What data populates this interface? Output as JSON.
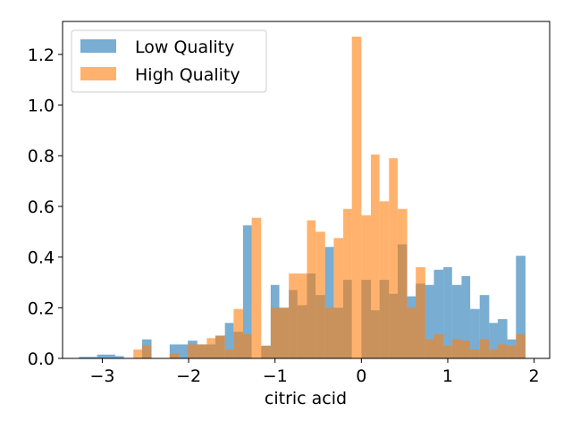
{
  "chart_data": {
    "type": "bar",
    "xlabel": "citric acid",
    "ylabel": "",
    "xlim": [
      -3.46,
      2.18
    ],
    "ylim": [
      0,
      1.33
    ],
    "xticks": [
      -3,
      -2,
      -1,
      0,
      1,
      2
    ],
    "xtick_labels": [
      "−3",
      "−2",
      "−1",
      "0",
      "1",
      "2"
    ],
    "yticks": [
      0,
      0.2,
      0.4,
      0.6,
      0.8,
      1.0,
      1.2
    ],
    "ytick_labels": [
      "0.0",
      "0.2",
      "0.4",
      "0.6",
      "0.8",
      "1.0",
      "1.2"
    ],
    "legend_position": "top-left",
    "series": [
      {
        "name": "Low Quality",
        "color": "#1f77b4",
        "opacity": 0.6,
        "bins": [
          [
            -3.27,
            -3.06,
            0.006
          ],
          [
            -3.06,
            -2.85,
            0.015
          ],
          [
            -2.85,
            -2.75,
            0.009
          ],
          [
            -2.54,
            -2.43,
            0.075
          ],
          [
            -2.22,
            -2.01,
            0.055
          ],
          [
            -2.01,
            -1.9,
            0.07
          ],
          [
            -1.9,
            -1.69,
            0.055
          ],
          [
            -1.69,
            -1.58,
            0.09
          ],
          [
            -1.58,
            -1.48,
            0.14
          ],
          [
            -1.48,
            -1.37,
            0.105
          ],
          [
            -1.37,
            -1.27,
            0.525
          ],
          [
            -1.16,
            -1.05,
            0.05
          ],
          [
            -1.05,
            -0.95,
            0.29
          ],
          [
            -0.95,
            -0.84,
            0.2
          ],
          [
            -0.84,
            -0.74,
            0.27
          ],
          [
            -0.74,
            -0.63,
            0.21
          ],
          [
            -0.63,
            -0.53,
            0.335
          ],
          [
            -0.53,
            -0.42,
            0.25
          ],
          [
            -0.42,
            -0.32,
            0.44
          ],
          [
            -0.32,
            -0.21,
            0.2
          ],
          [
            -0.21,
            -0.11,
            0.31
          ],
          [
            -0.11,
            0.0,
            0.0
          ],
          [
            0.0,
            0.11,
            0.31
          ],
          [
            0.11,
            0.21,
            0.19
          ],
          [
            0.21,
            0.32,
            0.31
          ],
          [
            0.32,
            0.42,
            0.255
          ],
          [
            0.42,
            0.53,
            0.45
          ],
          [
            0.53,
            0.63,
            0.245
          ],
          [
            0.63,
            0.74,
            0.295
          ],
          [
            0.74,
            0.84,
            0.29
          ],
          [
            0.84,
            0.95,
            0.35
          ],
          [
            0.95,
            1.05,
            0.36
          ],
          [
            1.05,
            1.16,
            0.29
          ],
          [
            1.16,
            1.26,
            0.325
          ],
          [
            1.26,
            1.37,
            0.195
          ],
          [
            1.37,
            1.48,
            0.25
          ],
          [
            1.48,
            1.58,
            0.14
          ],
          [
            1.58,
            1.69,
            0.155
          ],
          [
            1.69,
            1.79,
            0.075
          ],
          [
            1.79,
            1.9,
            0.405
          ]
        ]
      },
      {
        "name": "High Quality",
        "color": "#ff7f0e",
        "opacity": 0.6,
        "bins": [
          [
            -2.64,
            -2.54,
            0.035
          ],
          [
            -2.54,
            -2.43,
            0.05
          ],
          [
            -2.22,
            -2.11,
            0.02
          ],
          [
            -2.01,
            -1.9,
            0.055
          ],
          [
            -1.9,
            -1.79,
            0.055
          ],
          [
            -1.79,
            -1.69,
            0.08
          ],
          [
            -1.69,
            -1.58,
            0.09
          ],
          [
            -1.58,
            -1.48,
            0.035
          ],
          [
            -1.48,
            -1.37,
            0.195
          ],
          [
            -1.37,
            -1.27,
            0.095
          ],
          [
            -1.27,
            -1.16,
            0.555
          ],
          [
            -1.16,
            -1.05,
            0.05
          ],
          [
            -1.05,
            -0.95,
            0.2
          ],
          [
            -0.95,
            -0.84,
            0.2
          ],
          [
            -0.84,
            -0.74,
            0.335
          ],
          [
            -0.74,
            -0.63,
            0.335
          ],
          [
            -0.63,
            -0.53,
            0.545
          ],
          [
            -0.53,
            -0.42,
            0.5
          ],
          [
            -0.42,
            -0.32,
            0.2
          ],
          [
            -0.32,
            -0.21,
            0.475
          ],
          [
            -0.21,
            -0.11,
            0.59
          ],
          [
            -0.11,
            0.0,
            1.27
          ],
          [
            0.0,
            0.11,
            0.565
          ],
          [
            0.11,
            0.21,
            0.805
          ],
          [
            0.21,
            0.32,
            0.62
          ],
          [
            0.32,
            0.42,
            0.79
          ],
          [
            0.42,
            0.53,
            0.59
          ],
          [
            0.53,
            0.63,
            0.2
          ],
          [
            0.63,
            0.74,
            0.36
          ],
          [
            0.74,
            0.84,
            0.075
          ],
          [
            0.84,
            0.95,
            0.095
          ],
          [
            0.95,
            1.05,
            0.05
          ],
          [
            1.05,
            1.16,
            0.075
          ],
          [
            1.16,
            1.26,
            0.07
          ],
          [
            1.26,
            1.37,
            0.035
          ],
          [
            1.37,
            1.48,
            0.075
          ],
          [
            1.48,
            1.58,
            0.035
          ],
          [
            1.58,
            1.69,
            0.055
          ],
          [
            1.69,
            1.79,
            0.05
          ],
          [
            1.79,
            1.9,
            0.095
          ]
        ]
      }
    ]
  }
}
